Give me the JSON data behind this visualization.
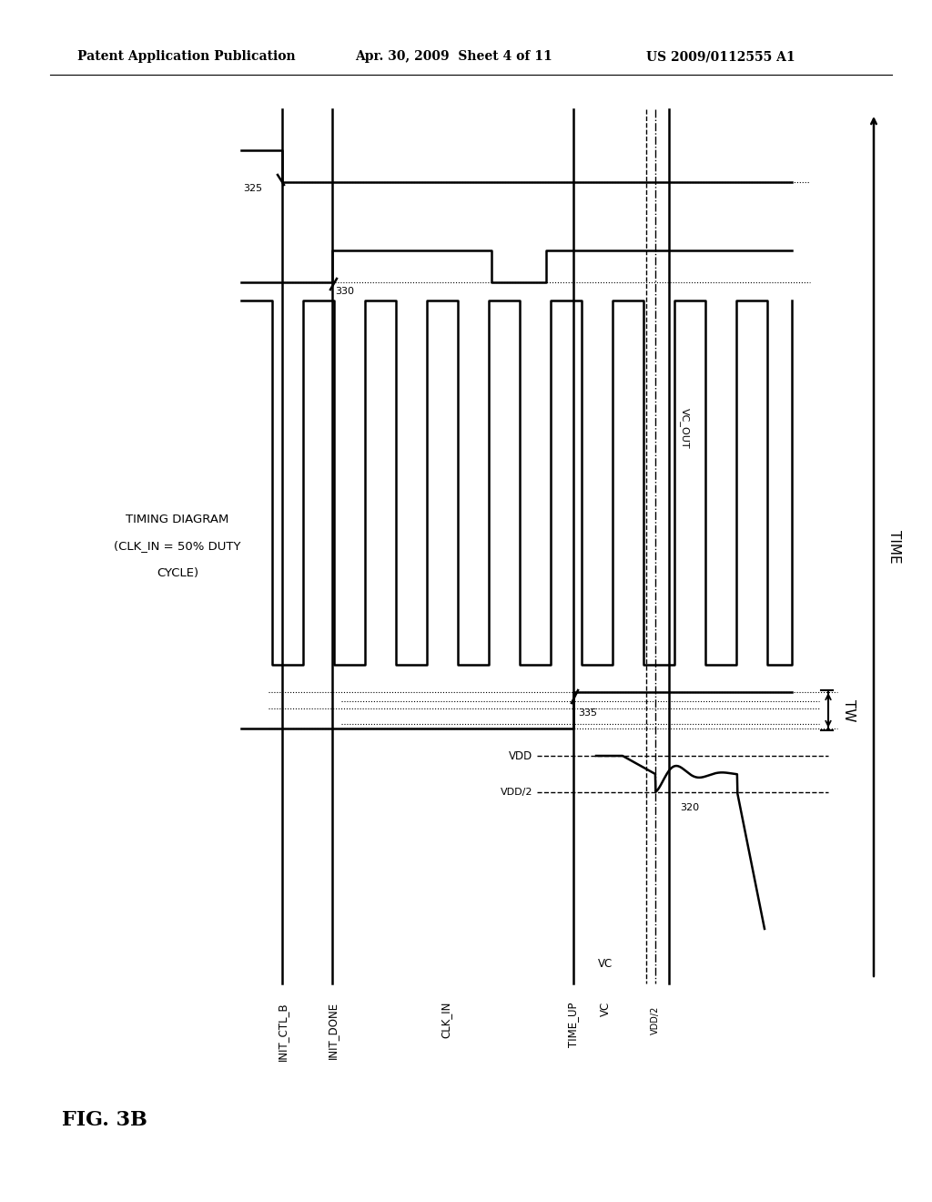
{
  "bg_color": "#ffffff",
  "header_left": "Patent Application Publication",
  "header_mid": "Apr. 30, 2009  Sheet 4 of 11",
  "header_right": "US 2009/0112555 A1",
  "fig_label": "FIG. 3B",
  "title_line1": "TIMING DIAGRAM",
  "title_line2": "(CLK_IN = 50% DUTY",
  "title_line3": "CYCLE)",
  "lw_main": 1.8,
  "lw_thin": 1.0,
  "lw_dot": 0.8,
  "signal_labels": [
    "INIT_CTL_B",
    "INIT_DONE",
    "CLK_IN",
    "TIME_UP",
    "VC"
  ],
  "vdd_label": "VDD",
  "vdd2_label": "VDD/2",
  "vc_out_label": "VC_OUT",
  "tw_label": "TW",
  "time_label": "TIME",
  "ann_325": "325",
  "ann_330": "330",
  "ann_335": "335",
  "ann_320": "320"
}
